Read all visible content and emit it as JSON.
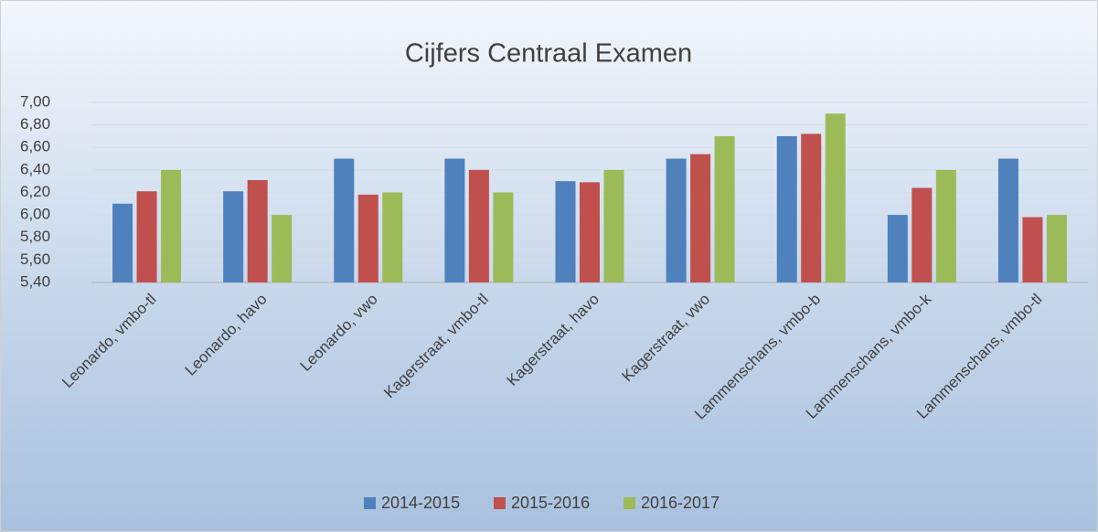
{
  "chart_data": {
    "type": "bar",
    "title": "Cijfers Centraal Examen",
    "categories": [
      "Leonardo, vmbo-tl",
      "Leonardo, havo",
      "Leonardo, vwo",
      "Kagerstraat, vmbo-tl",
      "Kagerstraat, havo",
      "Kagerstraat, vwo",
      "Lammenschans, vmbo-b",
      "Lammenschans, vmbo-k",
      "Lammenschans, vmbo-tl"
    ],
    "series": [
      {
        "name": "2014-2015",
        "color": "#4f81bd",
        "values": [
          6.1,
          6.21,
          6.5,
          6.5,
          6.3,
          6.5,
          6.7,
          6.0,
          6.5
        ]
      },
      {
        "name": "2015-2016",
        "color": "#c0504d",
        "values": [
          6.21,
          6.31,
          6.18,
          6.4,
          6.29,
          6.54,
          6.72,
          6.24,
          5.98
        ]
      },
      {
        "name": "2016-2017",
        "color": "#9bbb59",
        "values": [
          6.4,
          6.0,
          6.2,
          6.2,
          6.4,
          6.7,
          6.9,
          6.4,
          6.0
        ]
      }
    ],
    "ylim": [
      5.4,
      7.0
    ],
    "yticks": [
      {
        "value": 5.4,
        "label": "5,40"
      },
      {
        "value": 5.6,
        "label": "5,60"
      },
      {
        "value": 5.8,
        "label": "5,80"
      },
      {
        "value": 6.0,
        "label": "6,00"
      },
      {
        "value": 6.2,
        "label": "6,20"
      },
      {
        "value": 6.4,
        "label": "6,40"
      },
      {
        "value": 6.6,
        "label": "6,60"
      },
      {
        "value": 6.8,
        "label": "6,80"
      },
      {
        "value": 7.0,
        "label": "7,00"
      }
    ],
    "grid": true,
    "legend": "bottom"
  }
}
